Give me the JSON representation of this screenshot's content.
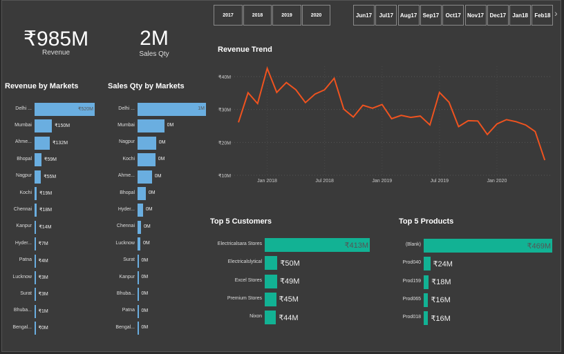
{
  "kpis": {
    "revenue": {
      "value": "₹985M",
      "label": "Revenue"
    },
    "sales_qty": {
      "value": "2M",
      "label": "Sales Qty"
    }
  },
  "year_slicer": [
    "2017",
    "2018",
    "2019",
    "2020"
  ],
  "month_slicer": [
    [
      "Jun",
      "17"
    ],
    [
      "Jul",
      "17"
    ],
    [
      "Aug",
      "17"
    ],
    [
      "Sep",
      "17"
    ],
    [
      "Oct",
      "17"
    ],
    [
      "Nov",
      "17"
    ],
    [
      "Dec",
      "17"
    ],
    [
      "Jan",
      "18"
    ],
    [
      "Feb",
      "18"
    ]
  ],
  "month_slicer_next_icon": "chevron-right-icon",
  "colors": {
    "background": "#3a3a3a",
    "market_bar": "#6aaee0",
    "top5_bar": "#12b294",
    "trend_line": "#f0531f"
  },
  "chart_data": [
    {
      "type": "bar",
      "title": "Revenue by Markets",
      "orientation": "horizontal",
      "categories": [
        "Delhi ...",
        "Mumbai",
        "Ahme...",
        "Bhopal",
        "Nagpur",
        "Kochi",
        "Chennai",
        "Kanpur",
        "Hyder...",
        "Patna",
        "Lucknow",
        "Surat",
        "Bhuba...",
        "Bengal..."
      ],
      "values": [
        520,
        150,
        132,
        59,
        55,
        19,
        18,
        14,
        7,
        4,
        3,
        3,
        1,
        0
      ],
      "labels": [
        "₹520M",
        "₹150M",
        "₹132M",
        "₹59M",
        "₹55M",
        "₹19M",
        "₹18M",
        "₹14M",
        "₹7M",
        "₹4M",
        "₹3M",
        "₹3M",
        "₹1M",
        "₹0M"
      ],
      "unit": "M"
    },
    {
      "type": "bar",
      "title": "Sales Qty by Markets",
      "orientation": "horizontal",
      "categories": [
        "Delhi ...",
        "Mumbai",
        "Nagpur",
        "Kochi",
        "Ahme...",
        "Bhopal",
        "Hyder...",
        "Chennai",
        "Lucknow",
        "Surat",
        "Kanpur",
        "Bhuba...",
        "Patna",
        "Bengal..."
      ],
      "values": [
        1.0,
        0.39,
        0.27,
        0.26,
        0.21,
        0.12,
        0.08,
        0.05,
        0.04,
        0.01,
        0.01,
        0.01,
        0.005,
        0.005
      ],
      "labels": [
        "1M",
        "0M",
        "0M",
        "0M",
        "0M",
        "0M",
        "0M",
        "0M",
        "0M",
        "0M",
        "0M",
        "0M",
        "0M",
        "0M"
      ],
      "unit": "M"
    },
    {
      "type": "line",
      "title": "Revenue Trend",
      "x_start": "Oct 2017",
      "x_end": "Jun 2020",
      "x_interval": "month",
      "x_ticks": [
        "Jan 2018",
        "Jul 2018",
        "Jan 2019",
        "Jul 2019",
        "Jan 2020"
      ],
      "y_ticks": [
        "₹10M",
        "₹20M",
        "₹30M",
        "₹40M"
      ],
      "ylim": [
        10,
        43
      ],
      "grid": true,
      "values": [
        26.1,
        35.1,
        31.8,
        42.5,
        35.2,
        38.2,
        36.0,
        32.1,
        34.7,
        36.0,
        39.5,
        30.1,
        27.7,
        31.3,
        30.4,
        31.5,
        27.2,
        28.2,
        27.6,
        28.0,
        25.3,
        35.2,
        32.2,
        24.8,
        26.6,
        26.5,
        22.4,
        25.6,
        26.9,
        26.3,
        25.3,
        23.3,
        14.6
      ]
    },
    {
      "type": "bar",
      "title": "Top 5 Customers",
      "orientation": "horizontal",
      "categories": [
        "Electricalsara Stores",
        "Electricalslytical",
        "Excel Stores",
        "Premium Stores",
        "Nixon"
      ],
      "values": [
        413,
        50,
        49,
        45,
        44
      ],
      "labels": [
        "₹413M",
        "₹50M",
        "₹49M",
        "₹45M",
        "₹44M"
      ]
    },
    {
      "type": "bar",
      "title": "Top 5 Products",
      "orientation": "horizontal",
      "categories": [
        "(Blank)",
        "Prod040",
        "Prod159",
        "Prod065",
        "Prod018"
      ],
      "values": [
        469,
        24,
        18,
        16,
        16
      ],
      "labels": [
        "₹469M",
        "₹24M",
        "₹18M",
        "₹16M",
        "₹16M"
      ]
    }
  ]
}
